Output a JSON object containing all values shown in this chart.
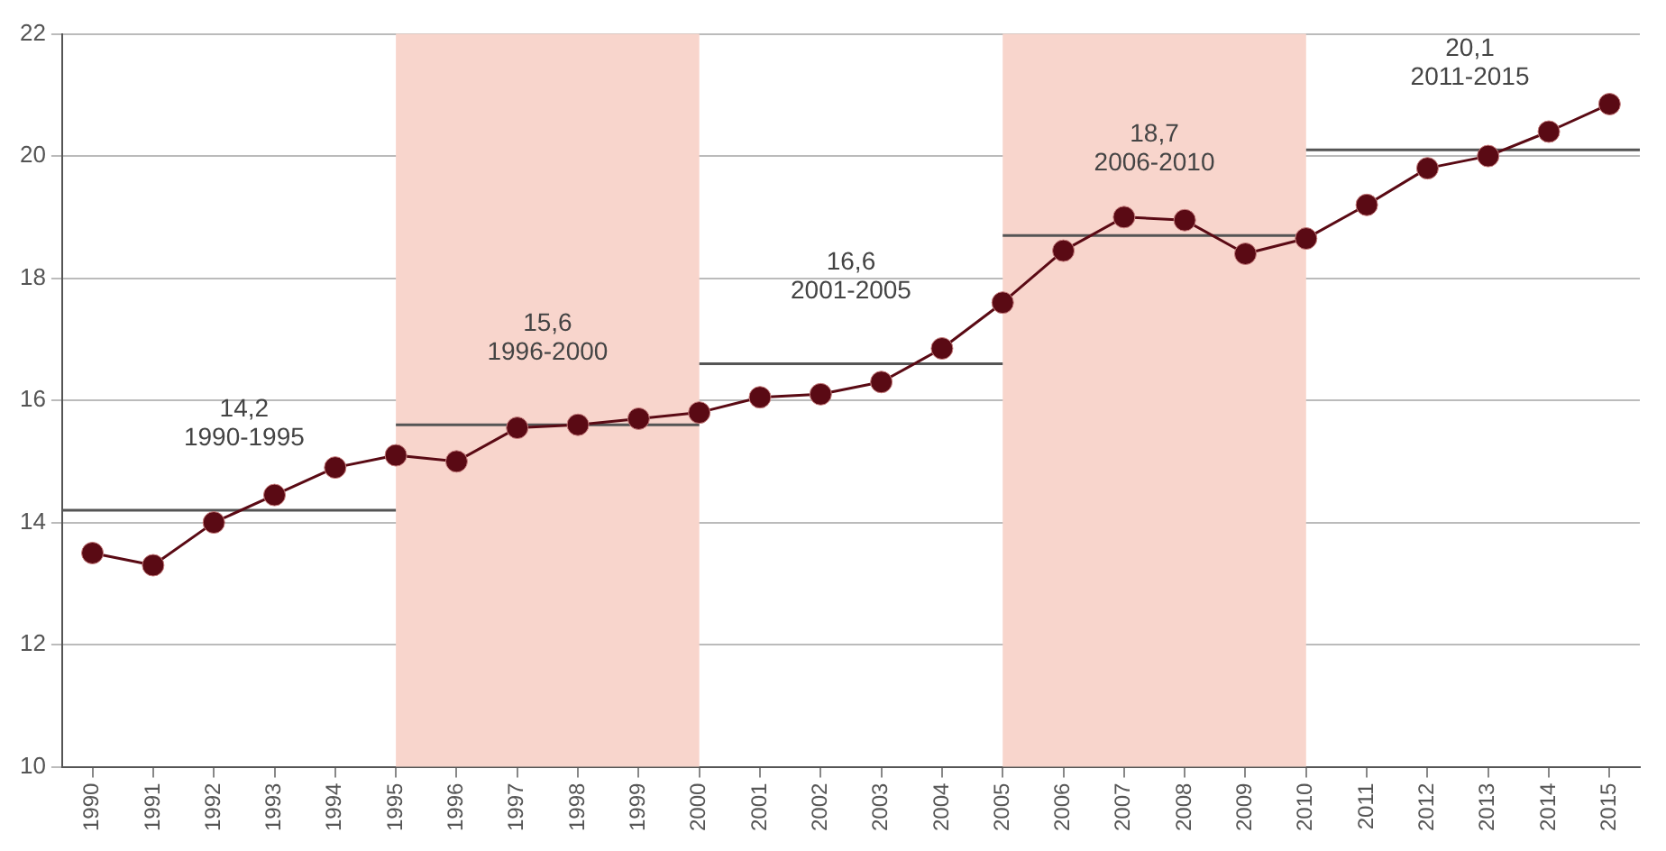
{
  "chart_data": {
    "type": "line",
    "x": [
      1990,
      1991,
      1992,
      1993,
      1994,
      1995,
      1996,
      1997,
      1998,
      1999,
      2000,
      2001,
      2002,
      2003,
      2004,
      2005,
      2006,
      2007,
      2008,
      2009,
      2010,
      2011,
      2012,
      2013,
      2014,
      2015
    ],
    "xlim": [
      1989.5,
      2015.5
    ],
    "xticks": [
      1990,
      1991,
      1992,
      1993,
      1994,
      1995,
      1996,
      1997,
      1998,
      1999,
      2000,
      2001,
      2002,
      2003,
      2004,
      2005,
      2006,
      2007,
      2008,
      2009,
      2010,
      2011,
      2012,
      2013,
      2014,
      2015
    ],
    "ylim": [
      10,
      22
    ],
    "yticks": [
      10,
      12,
      14,
      16,
      18,
      20,
      22
    ],
    "grid": "y",
    "marker": "circle",
    "line_style": "solid",
    "series": [
      {
        "color": "#5a0a14",
        "values": [
          13.5,
          13.3,
          14.0,
          14.45,
          14.9,
          15.1,
          15.0,
          15.55,
          15.6,
          15.7,
          15.8,
          16.05,
          16.1,
          16.3,
          16.85,
          17.6,
          18.45,
          19.0,
          18.95,
          18.4,
          18.65,
          19.2,
          19.8,
          20.0,
          20.4,
          20.85
        ]
      },
      {
        "type": "line",
        "marker": "none",
        "color": "#555555",
        "x": [
          1989.5,
          1995
        ],
        "values": [
          14.2,
          14.2
        ]
      },
      {
        "type": "line",
        "marker": "none",
        "color": "#555555",
        "x": [
          1995,
          2000
        ],
        "values": [
          15.6,
          15.6
        ]
      },
      {
        "type": "line",
        "marker": "none",
        "color": "#555555",
        "x": [
          2000,
          2005
        ],
        "values": [
          16.6,
          16.6
        ]
      },
      {
        "type": "line",
        "marker": "none",
        "color": "#555555",
        "x": [
          2005,
          2010
        ],
        "values": [
          18.7,
          18.7
        ]
      },
      {
        "type": "line",
        "marker": "none",
        "color": "#555555",
        "x": [
          2010,
          2015.5
        ],
        "values": [
          20.1,
          20.1
        ]
      }
    ],
    "bands": [
      {
        "axis": "x",
        "from": 1995,
        "to": 2000,
        "color": "#f8d5cc"
      },
      {
        "axis": "x",
        "from": 2005,
        "to": 2010,
        "color": "#f8d5cc"
      }
    ],
    "annotations": [
      {
        "text": "14,2\n1990-1995",
        "x": 1992.5,
        "y": 14.2
      },
      {
        "text": "15,6\n1996-2000",
        "x": 1997.5,
        "y": 15.6
      },
      {
        "text": "16,6\n2001-2005",
        "x": 2002.5,
        "y": 16.6
      },
      {
        "text": "18,7\n2006-2010",
        "x": 2007.5,
        "y": 18.7
      },
      {
        "text": "20,1\n2011-2015",
        "x": 2012.7,
        "y": 20.1
      }
    ]
  }
}
